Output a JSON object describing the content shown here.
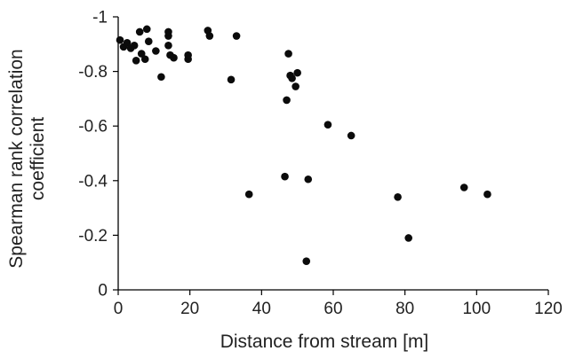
{
  "chart_data": {
    "type": "scatter",
    "title": "",
    "xlabel": "Distance from stream [m]",
    "ylabel_lines": [
      "Spearman rank correlation",
      "coefficient"
    ],
    "xlim": [
      0,
      120
    ],
    "ylim": [
      0,
      -1
    ],
    "x_ticks": [
      0,
      20,
      40,
      60,
      80,
      100,
      120
    ],
    "y_ticks": [
      0,
      -0.2,
      -0.4,
      -0.6,
      -0.8,
      -1
    ],
    "x_tick_labels": [
      "0",
      "20",
      "40",
      "60",
      "80",
      "100",
      "120"
    ],
    "y_tick_labels": [
      "0",
      "-0.2",
      "-0.4",
      "-0.6",
      "-0.8",
      "-1"
    ],
    "grid": false,
    "legend": "none",
    "marker_color": "#0b0b0b",
    "points": [
      {
        "x": 0.5,
        "y": -0.915
      },
      {
        "x": 1.5,
        "y": -0.89
      },
      {
        "x": 2.5,
        "y": -0.905
      },
      {
        "x": 3.5,
        "y": -0.885
      },
      {
        "x": 4.5,
        "y": -0.895
      },
      {
        "x": 5,
        "y": -0.84
      },
      {
        "x": 6,
        "y": -0.945
      },
      {
        "x": 6.5,
        "y": -0.865
      },
      {
        "x": 7.5,
        "y": -0.845
      },
      {
        "x": 8,
        "y": -0.955
      },
      {
        "x": 8.5,
        "y": -0.91
      },
      {
        "x": 10.5,
        "y": -0.875
      },
      {
        "x": 12,
        "y": -0.78
      },
      {
        "x": 14,
        "y": -0.93
      },
      {
        "x": 14,
        "y": -0.945
      },
      {
        "x": 14,
        "y": -0.895
      },
      {
        "x": 14.5,
        "y": -0.86
      },
      {
        "x": 15.5,
        "y": -0.85
      },
      {
        "x": 19.5,
        "y": -0.845
      },
      {
        "x": 19.5,
        "y": -0.86
      },
      {
        "x": 25,
        "y": -0.95
      },
      {
        "x": 25.5,
        "y": -0.93
      },
      {
        "x": 31.5,
        "y": -0.77
      },
      {
        "x": 33,
        "y": -0.93
      },
      {
        "x": 36.5,
        "y": -0.35
      },
      {
        "x": 46.5,
        "y": -0.415
      },
      {
        "x": 47,
        "y": -0.695
      },
      {
        "x": 47.5,
        "y": -0.865
      },
      {
        "x": 48,
        "y": -0.785
      },
      {
        "x": 48.5,
        "y": -0.775
      },
      {
        "x": 49.5,
        "y": -0.745
      },
      {
        "x": 50,
        "y": -0.795
      },
      {
        "x": 52.5,
        "y": -0.105
      },
      {
        "x": 53,
        "y": -0.405
      },
      {
        "x": 58.5,
        "y": -0.605
      },
      {
        "x": 65,
        "y": -0.565
      },
      {
        "x": 78,
        "y": -0.34
      },
      {
        "x": 81,
        "y": -0.19
      },
      {
        "x": 96.5,
        "y": -0.375
      },
      {
        "x": 103,
        "y": -0.35
      }
    ]
  }
}
